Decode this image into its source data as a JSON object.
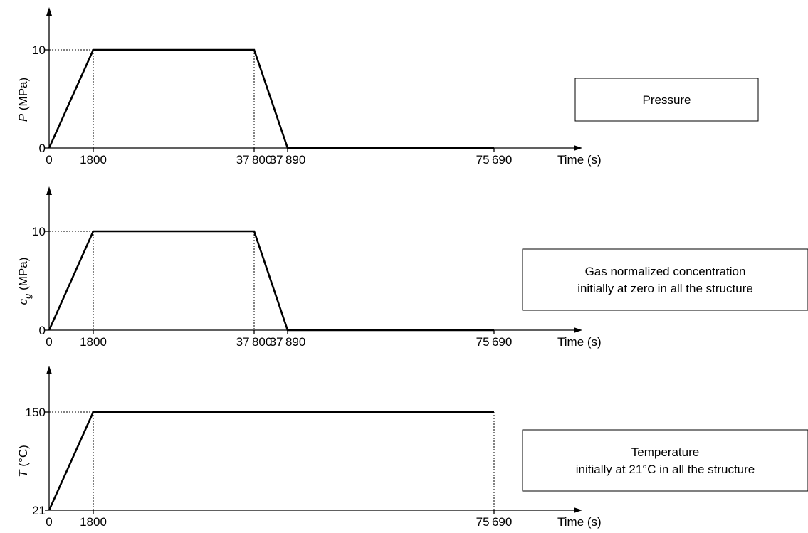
{
  "chart_data": [
    {
      "type": "line",
      "ylabel_symbol": "P",
      "ylabel_unit": " (MPa)",
      "xlabel": "Time (s)",
      "x": [
        0,
        1800,
        37800,
        37890,
        75690
      ],
      "y": [
        0,
        10,
        10,
        0,
        0
      ],
      "x_tick_labels": [
        "0",
        "1800",
        "37 800",
        "37 890",
        "75 690"
      ],
      "y_tick_labels": [
        "0",
        "10"
      ],
      "ylim": [
        0,
        10
      ],
      "box_lines": [
        "Pressure"
      ]
    },
    {
      "type": "line",
      "ylabel_symbol": "c",
      "ylabel_sub": "g",
      "ylabel_unit": " (MPa)",
      "xlabel": "Time (s)",
      "x": [
        0,
        1800,
        37800,
        37890,
        75690
      ],
      "y": [
        0,
        10,
        10,
        0,
        0
      ],
      "x_tick_labels": [
        "0",
        "1800",
        "37 800",
        "37 890",
        "75 690"
      ],
      "y_tick_labels": [
        "0",
        "10"
      ],
      "ylim": [
        0,
        10
      ],
      "box_lines": [
        "Gas normalized concentration",
        "initially at zero in all the structure"
      ]
    },
    {
      "type": "line",
      "ylabel_symbol": "T",
      "ylabel_unit": "  (°C)",
      "xlabel": "Time (s)",
      "x": [
        0,
        1800,
        75690
      ],
      "y": [
        21,
        150,
        150
      ],
      "x_tick_labels": [
        "0",
        "1800",
        "75 690"
      ],
      "y_tick_labels": [
        "21",
        "150"
      ],
      "ylim": [
        21,
        150
      ],
      "box_lines": [
        "Temperature",
        "initially at 21°C in all the structure"
      ]
    }
  ]
}
